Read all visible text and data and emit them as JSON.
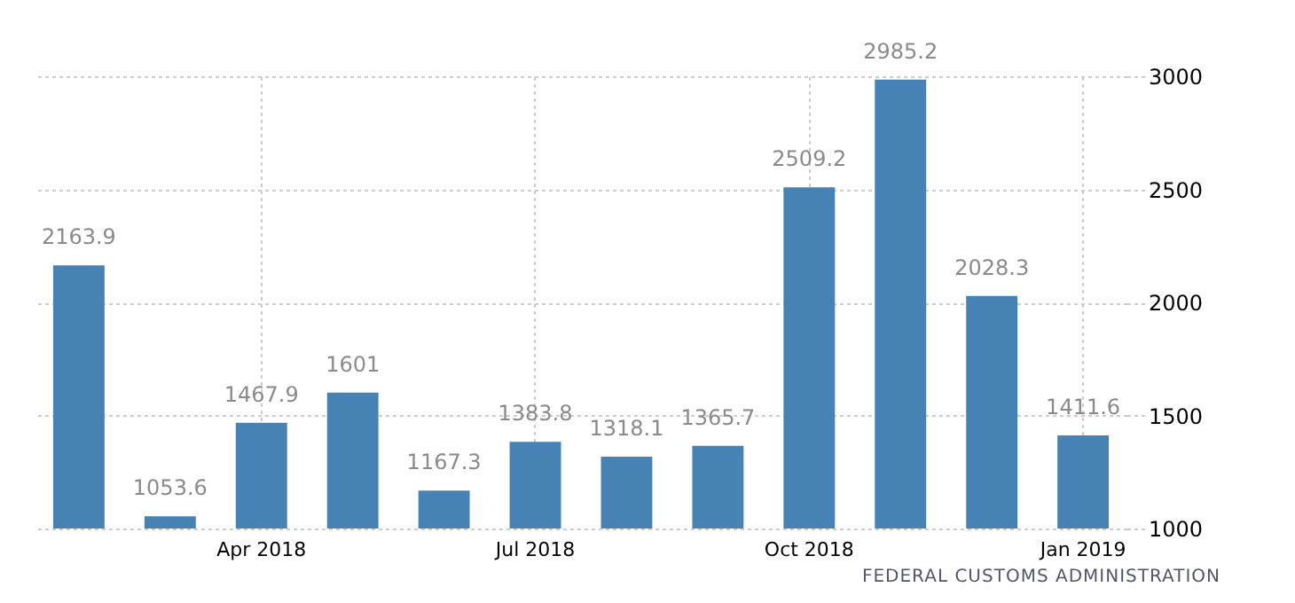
{
  "chart_data": {
    "type": "bar",
    "categories": [
      null,
      null,
      "Apr 2018",
      null,
      null,
      "Jul 2018",
      null,
      null,
      "Oct 2018",
      null,
      null,
      "Jan 2019"
    ],
    "values": [
      2163.9,
      1053.6,
      1467.9,
      1601,
      1167.3,
      1383.8,
      1318.1,
      1365.7,
      2509.2,
      2985.2,
      2028.3,
      1411.6
    ],
    "color": "#4682b4",
    "ylim": [
      1000,
      3000
    ],
    "yticks": [
      1000,
      1500,
      2000,
      2500,
      3000
    ],
    "grid": true,
    "data_labels": true,
    "annotations": [
      "FEDERAL CUSTOMS ADMINISTRATION"
    ]
  }
}
